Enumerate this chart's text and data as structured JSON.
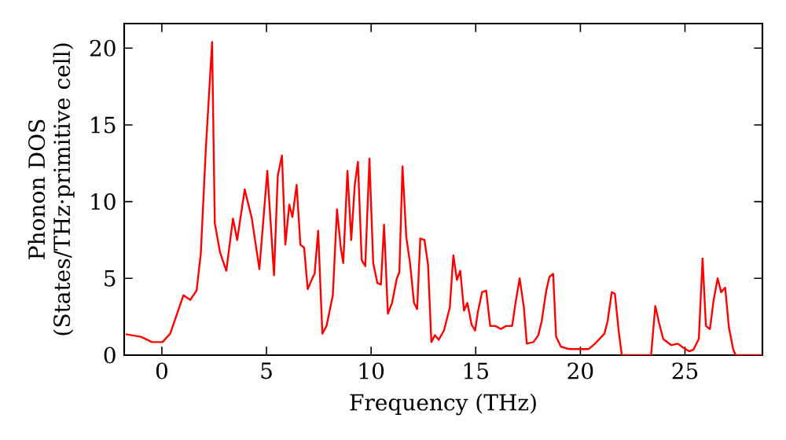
{
  "chart_data": {
    "type": "line",
    "xlabel": "Frequency (THz)",
    "ylabel": "Phonon DOS (States/THz·primitive cell)",
    "xlim": [
      -1.8,
      28.7
    ],
    "ylim": [
      0,
      21.6
    ],
    "xticks": [
      0,
      5,
      10,
      15,
      20,
      25
    ],
    "yticks": [
      0,
      5,
      10,
      15,
      20
    ],
    "marker": "none",
    "line_style": "solid",
    "series": [
      {
        "color": "#ff0000",
        "x": [
          -1.73,
          -1.0,
          -0.47,
          0.03,
          0.4,
          1.03,
          1.36,
          1.66,
          1.86,
          2.1,
          2.4,
          2.53,
          2.78,
          3.08,
          3.4,
          3.6,
          3.96,
          4.3,
          4.66,
          5.04,
          5.36,
          5.54,
          5.74,
          5.9,
          6.09,
          6.24,
          6.44,
          6.62,
          6.8,
          6.97,
          7.22,
          7.3,
          7.47,
          7.67,
          7.87,
          8.17,
          8.37,
          8.55,
          8.67,
          8.87,
          9.05,
          9.22,
          9.37,
          9.55,
          9.72,
          9.92,
          10.1,
          10.3,
          10.47,
          10.62,
          10.8,
          11.0,
          11.23,
          11.35,
          11.5,
          11.68,
          11.86,
          12.05,
          12.2,
          12.35,
          12.55,
          12.72,
          12.88,
          13.05,
          13.23,
          13.48,
          13.76,
          13.93,
          14.1,
          14.26,
          14.44,
          14.6,
          14.8,
          14.97,
          15.1,
          15.3,
          15.5,
          15.69,
          15.94,
          16.2,
          16.44,
          16.74,
          16.9,
          17.1,
          17.3,
          17.44,
          17.76,
          17.99,
          18.15,
          18.37,
          18.52,
          18.7,
          18.84,
          19.07,
          19.44,
          19.95,
          20.4,
          20.7,
          21.15,
          21.3,
          21.5,
          21.65,
          21.83,
          21.98,
          23.38,
          23.58,
          23.76,
          23.96,
          24.34,
          24.66,
          24.9,
          25.2,
          25.4,
          25.66,
          25.84,
          26.0,
          26.19,
          26.37,
          26.56,
          26.73,
          26.92,
          27.1,
          27.3,
          27.42,
          28.7
        ],
        "values": [
          1.36,
          1.2,
          0.85,
          0.85,
          1.4,
          3.9,
          3.6,
          4.2,
          6.6,
          13.4,
          20.4,
          8.6,
          6.7,
          5.5,
          8.9,
          7.5,
          10.8,
          8.9,
          5.6,
          12.0,
          5.2,
          11.7,
          13.0,
          7.2,
          9.8,
          9.0,
          11.1,
          7.2,
          7.0,
          4.3,
          5.1,
          5.3,
          8.1,
          1.4,
          1.9,
          3.9,
          9.5,
          7.0,
          6.0,
          12.0,
          7.5,
          11.1,
          12.6,
          6.2,
          5.8,
          12.8,
          6.0,
          4.7,
          4.6,
          8.5,
          2.7,
          3.4,
          5.0,
          5.4,
          12.3,
          7.7,
          6.0,
          3.4,
          3.0,
          7.6,
          7.5,
          5.9,
          0.85,
          1.3,
          1.0,
          1.6,
          3.1,
          6.5,
          4.9,
          5.5,
          2.9,
          3.4,
          2.0,
          1.6,
          2.8,
          4.1,
          4.2,
          1.9,
          1.9,
          1.7,
          1.9,
          1.9,
          3.4,
          5.0,
          3.1,
          0.75,
          0.85,
          1.3,
          2.2,
          4.2,
          5.1,
          5.3,
          1.2,
          0.55,
          0.4,
          0.4,
          0.4,
          0.75,
          1.4,
          2.2,
          4.1,
          4.0,
          1.6,
          0.0,
          0.0,
          3.2,
          2.1,
          1.05,
          0.65,
          0.75,
          0.5,
          0.25,
          0.35,
          1.05,
          6.3,
          1.9,
          1.7,
          3.6,
          5.0,
          4.1,
          4.4,
          1.8,
          0.4,
          0.0,
          0.0
        ]
      }
    ]
  }
}
